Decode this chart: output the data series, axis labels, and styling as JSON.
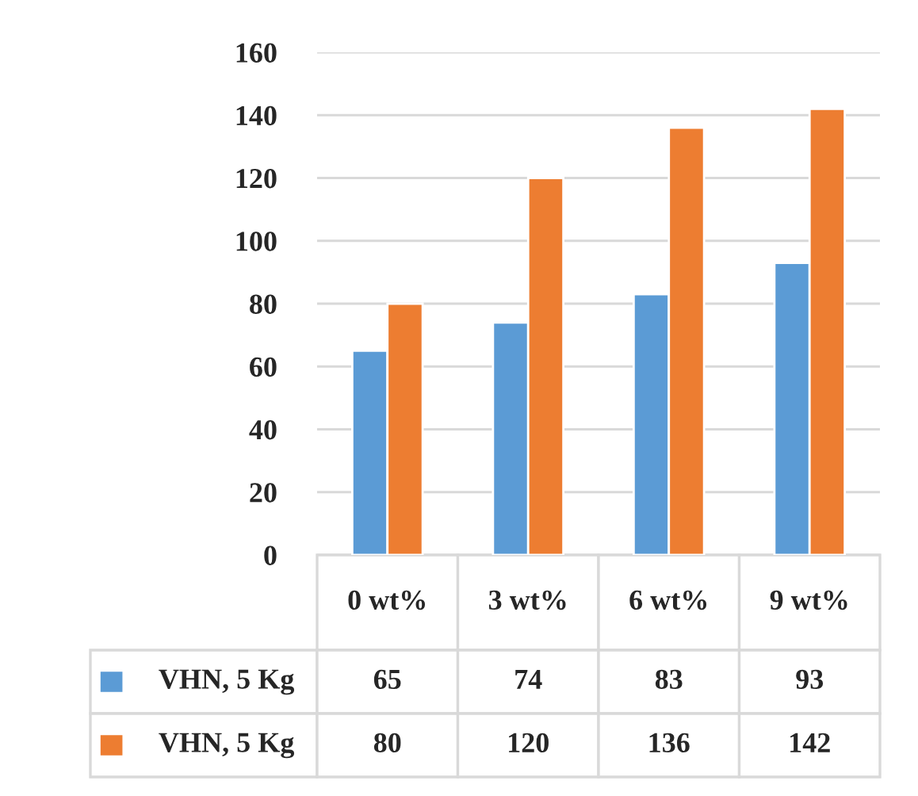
{
  "chart_data": {
    "type": "bar",
    "categories": [
      "0 wt%",
      "3 wt%",
      "6 wt%",
      "9 wt%"
    ],
    "series": [
      {
        "name": "VHN, 5 Kg",
        "color": "#5b9bd5",
        "values": [
          65,
          74,
          83,
          93
        ]
      },
      {
        "name": "VHN, 5 Kg",
        "color": "#ed7d31",
        "values": [
          80,
          120,
          136,
          142
        ]
      }
    ],
    "ylim": [
      0,
      160
    ],
    "yticks": [
      0,
      20,
      40,
      60,
      80,
      100,
      120,
      140,
      160
    ],
    "grid": "y",
    "data_labels": true
  }
}
